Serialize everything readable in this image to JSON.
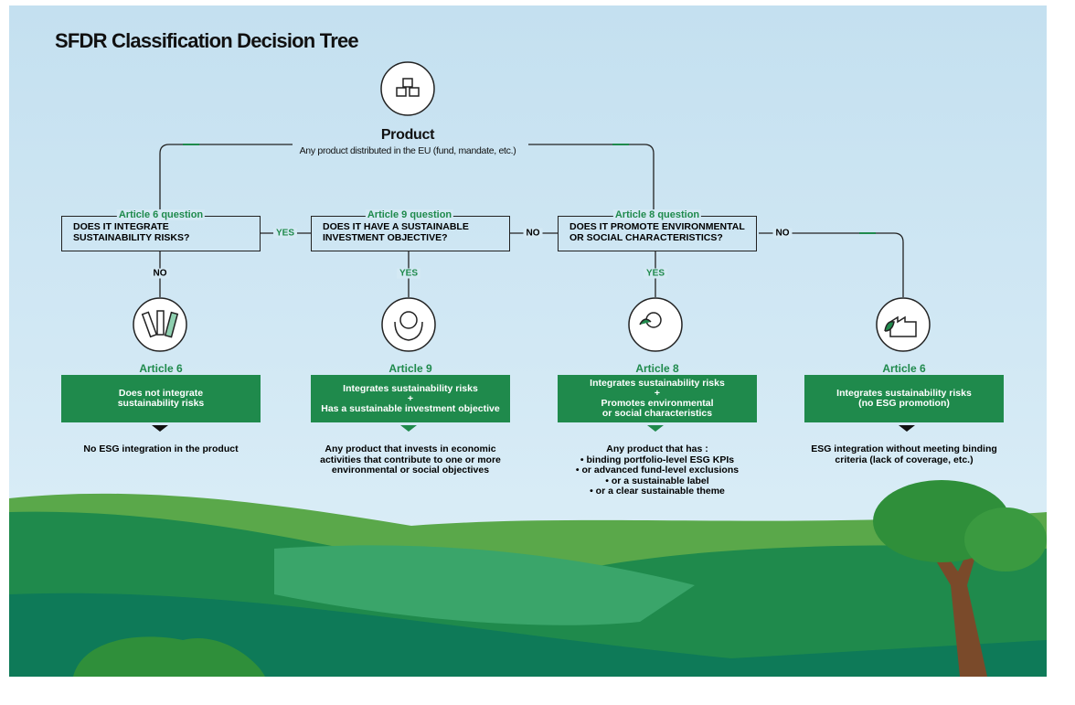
{
  "title": "SFDR Classification Decision Tree",
  "root": {
    "label": "Product",
    "description": "Any product distributed in the EU (fund, mandate, etc.)"
  },
  "questions": [
    {
      "tag": "Article 6 question",
      "text": "DOES IT INTEGRATE SUSTAINABILITY RISKS?",
      "yes": "YES",
      "no": "NO"
    },
    {
      "tag": "Article 9 question",
      "text": "DOES IT HAVE A SUSTAINABLE INVESTMENT OBJECTIVE?",
      "yes": "YES",
      "no": "NO"
    },
    {
      "tag": "Article 8 question",
      "text": "DOES IT PROMOTE ENVIRONMENTAL OR SOCIAL CHARACTERISTICS?",
      "yes": "YES",
      "no": "NO"
    }
  ],
  "outcomes": [
    {
      "article": "Article 6",
      "box": [
        "Does not integrate",
        "sustainability risks"
      ],
      "note": [
        "No ESG integration in the product"
      ]
    },
    {
      "article": "Article 9",
      "box": [
        "Integrates sustainability risks",
        "+",
        "Has a sustainable investment objective"
      ],
      "note": [
        "Any product that invests in economic activities that contribute to one or more environmental or social objectives"
      ]
    },
    {
      "article": "Article 8",
      "box": [
        "Integrates sustainability risks",
        "+",
        "Promotes environmental",
        "or social characteristics"
      ],
      "note": [
        "Any product that has :",
        "• binding portfolio-level ESG KPIs",
        "• or advanced fund-level exclusions",
        "• or a sustainable label",
        "• or a clear sustainable theme"
      ]
    },
    {
      "article": "Article 6",
      "box": [
        "Integrates sustainability risks",
        "(no ESG promotion)"
      ],
      "note": [
        "ESG integration without meeting binding criteria (lack of coverage, etc.)"
      ]
    }
  ]
}
